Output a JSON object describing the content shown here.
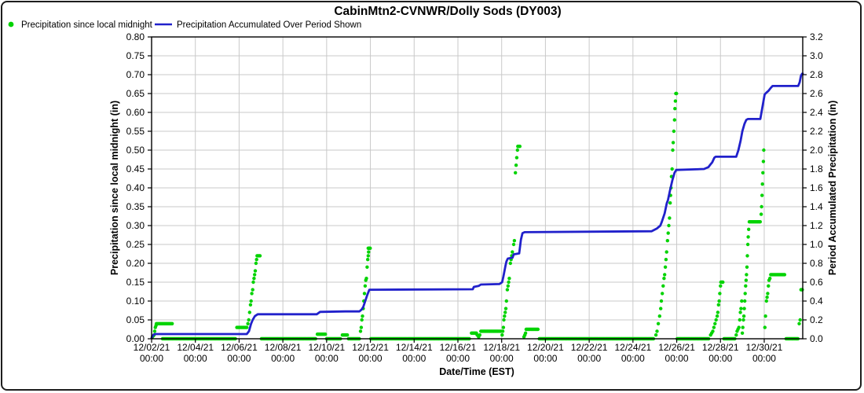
{
  "chart": {
    "title": "CabinMtn2-CVNWR/Dolly Sods (DY003)",
    "legend": [
      {
        "label": "Precipitation since local midnight",
        "marker": "dot",
        "color": "#00d300"
      },
      {
        "label": "Precipitation Accumulated Over Period Shown",
        "marker": "line",
        "color": "#2121cb"
      }
    ],
    "colors": {
      "green_series": "#00d300",
      "blue_series": "#2121cb",
      "grid": "#c9c9c9",
      "axis": "#000000",
      "text": "#000000",
      "background": "#ffffff"
    }
  },
  "chart_data": {
    "type": "line",
    "title": "CabinMtn2-CVNWR/Dolly Sods (DY003)",
    "xlabel": "Date/Time (EST)",
    "x_units": "days since 12/02/21 00:00 EST",
    "x_range_days": [
      0,
      29.76
    ],
    "grid": true,
    "legend_position": "top-left",
    "x_axis": {
      "tick_days": [
        0,
        2,
        4,
        6,
        8,
        10,
        12,
        14,
        16,
        18,
        20,
        22,
        24,
        26,
        28
      ],
      "tick_labels": [
        "12/02/21",
        "12/04/21",
        "12/06/21",
        "12/08/21",
        "12/10/21",
        "12/12/21",
        "12/14/21",
        "12/16/21",
        "12/18/21",
        "12/20/21",
        "12/22/21",
        "12/24/21",
        "12/26/21",
        "12/28/21",
        "12/30/21"
      ],
      "tick_sublabel": "00:00"
    },
    "y_left": {
      "label": "Precipitation since local midnight (in)",
      "min": 0.0,
      "max": 0.8,
      "step": 0.05,
      "tick_labels": [
        "0.00",
        "0.05",
        "0.10",
        "0.15",
        "0.20",
        "0.25",
        "0.30",
        "0.35",
        "0.40",
        "0.45",
        "0.50",
        "0.55",
        "0.60",
        "0.65",
        "0.70",
        "0.75",
        "0.80"
      ]
    },
    "y_right": {
      "label": "Period Accumulated Precipitation (in)",
      "min": 0.0,
      "max": 3.2,
      "step": 0.2,
      "tick_labels": [
        "0.0",
        "0.2",
        "0.4",
        "0.6",
        "0.8",
        "1.0",
        "1.2",
        "1.4",
        "1.6",
        "1.8",
        "2.0",
        "2.2",
        "2.4",
        "2.6",
        "2.8",
        "3.0",
        "3.2"
      ]
    },
    "series": [
      {
        "name": "Precipitation since local midnight",
        "type": "scatter",
        "axis": "left",
        "color": "#00d300",
        "dot_radius": 2.2,
        "runs_note": "runs are [start_day, end_day, inches] plateaus of repeated 15-min dots",
        "runs": [
          [
            0.22,
            0.98,
            0.04
          ],
          [
            0.5,
            3.85,
            0
          ],
          [
            3.9,
            4.35,
            0.03
          ],
          [
            4.82,
            4.98,
            0.22
          ],
          [
            5.02,
            7.5,
            0
          ],
          [
            7.58,
            7.95,
            0.012
          ],
          [
            8.0,
            8.65,
            0
          ],
          [
            8.72,
            8.95,
            0.01
          ],
          [
            9.0,
            9.5,
            0
          ],
          [
            9.9,
            9.99,
            0.24
          ],
          [
            10.02,
            14.55,
            0
          ],
          [
            14.62,
            14.85,
            0.015
          ],
          [
            15.05,
            15.95,
            0.02
          ],
          [
            16.74,
            16.84,
            0.51
          ],
          [
            17.12,
            17.68,
            0.025
          ],
          [
            17.72,
            22.98,
            0
          ],
          [
            24.02,
            25.5,
            0
          ],
          [
            26.02,
            26.12,
            0.15
          ],
          [
            26.16,
            26.68,
            0
          ],
          [
            27.32,
            27.84,
            0.31
          ],
          [
            28.3,
            28.95,
            0.17
          ],
          [
            29.0,
            29.55,
            0
          ]
        ],
        "points": [
          [
            0.04,
            0.005
          ],
          [
            0.08,
            0.008
          ],
          [
            0.11,
            0.01
          ],
          [
            0.14,
            0.02
          ],
          [
            0.17,
            0.03
          ],
          [
            0.2,
            0.035
          ],
          [
            4.4,
            0.04
          ],
          [
            4.44,
            0.05
          ],
          [
            4.48,
            0.07
          ],
          [
            4.52,
            0.09
          ],
          [
            4.55,
            0.1
          ],
          [
            4.58,
            0.12
          ],
          [
            4.62,
            0.13
          ],
          [
            4.65,
            0.15
          ],
          [
            4.68,
            0.16
          ],
          [
            4.71,
            0.17
          ],
          [
            4.74,
            0.18
          ],
          [
            4.77,
            0.2
          ],
          [
            4.8,
            0.21
          ],
          [
            9.55,
            0.02
          ],
          [
            9.58,
            0.03
          ],
          [
            9.61,
            0.05
          ],
          [
            9.64,
            0.06
          ],
          [
            9.67,
            0.08
          ],
          [
            9.7,
            0.1
          ],
          [
            9.73,
            0.12
          ],
          [
            9.76,
            0.14
          ],
          [
            9.79,
            0.155
          ],
          [
            9.82,
            0.16
          ],
          [
            9.85,
            0.19
          ],
          [
            9.88,
            0.21
          ],
          [
            9.9,
            0.22
          ],
          [
            9.92,
            0.23
          ],
          [
            9.94,
            0.24
          ],
          [
            14.88,
            0.01
          ],
          [
            14.95,
            0.005
          ],
          [
            15.0,
            0.01
          ],
          [
            16.02,
            0.01
          ],
          [
            16.05,
            0.02
          ],
          [
            16.08,
            0.03
          ],
          [
            16.1,
            0.05
          ],
          [
            16.13,
            0.06
          ],
          [
            16.16,
            0.07
          ],
          [
            16.19,
            0.08
          ],
          [
            16.22,
            0.1
          ],
          [
            16.26,
            0.13
          ],
          [
            16.29,
            0.14
          ],
          [
            16.32,
            0.15
          ],
          [
            16.35,
            0.16
          ],
          [
            16.4,
            0.2
          ],
          [
            16.43,
            0.21
          ],
          [
            16.46,
            0.22
          ],
          [
            16.49,
            0.23
          ],
          [
            16.55,
            0.25
          ],
          [
            16.58,
            0.26
          ],
          [
            16.63,
            0.44
          ],
          [
            16.66,
            0.46
          ],
          [
            16.69,
            0.48
          ],
          [
            16.72,
            0.5
          ],
          [
            17.02,
            0.005
          ],
          [
            17.06,
            0.01
          ],
          [
            17.09,
            0.015
          ],
          [
            23.05,
            0.01
          ],
          [
            23.1,
            0.02
          ],
          [
            23.16,
            0.04
          ],
          [
            23.22,
            0.06
          ],
          [
            23.27,
            0.08
          ],
          [
            23.3,
            0.1
          ],
          [
            23.34,
            0.12
          ],
          [
            23.38,
            0.14
          ],
          [
            23.42,
            0.16
          ],
          [
            23.45,
            0.17
          ],
          [
            23.48,
            0.19
          ],
          [
            23.51,
            0.21
          ],
          [
            23.54,
            0.23
          ],
          [
            23.58,
            0.26
          ],
          [
            23.61,
            0.28
          ],
          [
            23.64,
            0.3
          ],
          [
            23.67,
            0.32
          ],
          [
            23.7,
            0.36
          ],
          [
            23.72,
            0.38
          ],
          [
            23.74,
            0.4
          ],
          [
            23.76,
            0.43
          ],
          [
            23.79,
            0.45
          ],
          [
            23.82,
            0.5
          ],
          [
            23.84,
            0.52
          ],
          [
            23.87,
            0.55
          ],
          [
            23.9,
            0.58
          ],
          [
            23.92,
            0.61
          ],
          [
            23.94,
            0.63
          ],
          [
            23.96,
            0.65
          ],
          [
            23.99,
            0.65
          ],
          [
            25.55,
            0.01
          ],
          [
            25.6,
            0.015
          ],
          [
            25.65,
            0.02
          ],
          [
            25.7,
            0.03
          ],
          [
            25.75,
            0.04
          ],
          [
            25.8,
            0.05
          ],
          [
            25.85,
            0.06
          ],
          [
            25.88,
            0.07
          ],
          [
            25.91,
            0.09
          ],
          [
            25.94,
            0.1
          ],
          [
            25.97,
            0.12
          ],
          [
            26.0,
            0.14
          ],
          [
            26.72,
            0.01
          ],
          [
            26.76,
            0.02
          ],
          [
            26.8,
            0.025
          ],
          [
            26.84,
            0.03
          ],
          [
            26.88,
            0.05
          ],
          [
            26.91,
            0.07
          ],
          [
            26.94,
            0.08
          ],
          [
            26.97,
            0.1
          ],
          [
            27.0,
            0.015
          ],
          [
            27.02,
            0.03
          ],
          [
            27.05,
            0.05
          ],
          [
            27.07,
            0.06
          ],
          [
            27.09,
            0.08
          ],
          [
            27.11,
            0.1
          ],
          [
            27.13,
            0.12
          ],
          [
            27.15,
            0.14
          ],
          [
            27.17,
            0.155
          ],
          [
            27.19,
            0.17
          ],
          [
            27.21,
            0.19
          ],
          [
            27.23,
            0.22
          ],
          [
            27.25,
            0.25
          ],
          [
            27.27,
            0.27
          ],
          [
            27.29,
            0.29
          ],
          [
            27.86,
            0.33
          ],
          [
            27.88,
            0.35
          ],
          [
            27.9,
            0.38
          ],
          [
            27.92,
            0.41
          ],
          [
            27.94,
            0.44
          ],
          [
            27.96,
            0.47
          ],
          [
            27.98,
            0.5
          ],
          [
            28.03,
            0.03
          ],
          [
            28.06,
            0.06
          ],
          [
            28.1,
            0.1
          ],
          [
            28.13,
            0.11
          ],
          [
            28.16,
            0.12
          ],
          [
            28.19,
            0.14
          ],
          [
            28.22,
            0.155
          ],
          [
            28.26,
            0.16
          ],
          [
            29.6,
            0.04
          ],
          [
            29.64,
            0.05
          ],
          [
            29.68,
            0.13
          ],
          [
            29.71,
            0.13
          ],
          [
            29.74,
            0.13
          ]
        ]
      },
      {
        "name": "Precipitation Accumulated Over Period Shown",
        "type": "line",
        "axis": "right",
        "color": "#2121cb",
        "line_width": 2.8,
        "points": [
          [
            0,
            0.01
          ],
          [
            0.08,
            0.04
          ],
          [
            0.15,
            0.05
          ],
          [
            4.35,
            0.05
          ],
          [
            4.45,
            0.08
          ],
          [
            4.55,
            0.16
          ],
          [
            4.62,
            0.2
          ],
          [
            4.72,
            0.24
          ],
          [
            4.85,
            0.26
          ],
          [
            7.55,
            0.26
          ],
          [
            7.7,
            0.285
          ],
          [
            8.85,
            0.29
          ],
          [
            9.5,
            0.29
          ],
          [
            9.6,
            0.31
          ],
          [
            9.68,
            0.34
          ],
          [
            9.78,
            0.41
          ],
          [
            9.85,
            0.46
          ],
          [
            9.95,
            0.52
          ],
          [
            14.68,
            0.525
          ],
          [
            14.73,
            0.55
          ],
          [
            14.95,
            0.56
          ],
          [
            15.05,
            0.575
          ],
          [
            15.9,
            0.58
          ],
          [
            16.02,
            0.6
          ],
          [
            16.08,
            0.66
          ],
          [
            16.13,
            0.72
          ],
          [
            16.18,
            0.78
          ],
          [
            16.22,
            0.82
          ],
          [
            16.28,
            0.85
          ],
          [
            16.5,
            0.86
          ],
          [
            16.55,
            0.895
          ],
          [
            16.8,
            0.905
          ],
          [
            16.88,
            1.05
          ],
          [
            16.95,
            1.12
          ],
          [
            17.05,
            1.13
          ],
          [
            22.85,
            1.14
          ],
          [
            23.1,
            1.17
          ],
          [
            23.25,
            1.2
          ],
          [
            23.32,
            1.24
          ],
          [
            23.45,
            1.33
          ],
          [
            23.55,
            1.44
          ],
          [
            23.6,
            1.47
          ],
          [
            23.7,
            1.58
          ],
          [
            23.8,
            1.68
          ],
          [
            23.9,
            1.76
          ],
          [
            23.98,
            1.79
          ],
          [
            25.25,
            1.8
          ],
          [
            25.45,
            1.82
          ],
          [
            25.55,
            1.85
          ],
          [
            25.62,
            1.87
          ],
          [
            25.72,
            1.92
          ],
          [
            25.78,
            1.93
          ],
          [
            26.72,
            1.93
          ],
          [
            26.82,
            2.0
          ],
          [
            26.92,
            2.1
          ],
          [
            27.0,
            2.2
          ],
          [
            27.1,
            2.28
          ],
          [
            27.18,
            2.32
          ],
          [
            27.25,
            2.33
          ],
          [
            27.82,
            2.33
          ],
          [
            27.95,
            2.5
          ],
          [
            28.02,
            2.59
          ],
          [
            28.1,
            2.61
          ],
          [
            28.2,
            2.63
          ],
          [
            28.3,
            2.66
          ],
          [
            28.38,
            2.68
          ],
          [
            29.55,
            2.68
          ],
          [
            29.62,
            2.72
          ],
          [
            29.68,
            2.79
          ],
          [
            29.73,
            2.81
          ],
          [
            29.76,
            2.81
          ]
        ]
      }
    ]
  }
}
